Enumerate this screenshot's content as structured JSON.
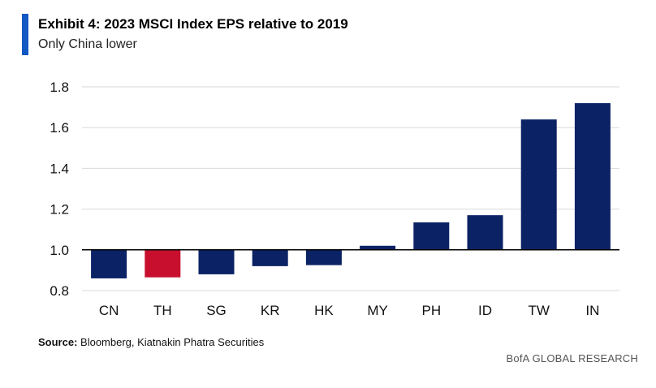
{
  "header": {
    "title": "Exhibit 4: 2023 MSCI Index EPS relative to 2019",
    "subtitle": "Only China lower"
  },
  "footer": {
    "source_label": "Source:",
    "source_text": "Bloomberg, Kiatnakin Phatra Securities",
    "brand": "BofA GLOBAL RESEARCH"
  },
  "colors": {
    "accent": "#1259c3",
    "bar": "#0b2265",
    "highlight": "#c8102e",
    "grid": "#d9d9d9",
    "baseline": "#000000"
  },
  "chart_data": {
    "type": "bar",
    "categories": [
      "CN",
      "TH",
      "SG",
      "KR",
      "HK",
      "MY",
      "PH",
      "ID",
      "TW",
      "IN"
    ],
    "values": [
      0.86,
      0.865,
      0.88,
      0.92,
      0.925,
      1.02,
      1.135,
      1.17,
      1.64,
      1.72
    ],
    "highlight_category": "TH",
    "baseline": 1.0,
    "ylim": [
      0.8,
      1.8
    ],
    "yticks": [
      "0.8",
      "1.0",
      "1.2",
      "1.4",
      "1.6",
      "1.8"
    ],
    "grid": true,
    "title": "Exhibit 4: 2023 MSCI Index EPS relative to 2019",
    "subtitle": "Only China lower",
    "xlabel": "",
    "ylabel": ""
  }
}
